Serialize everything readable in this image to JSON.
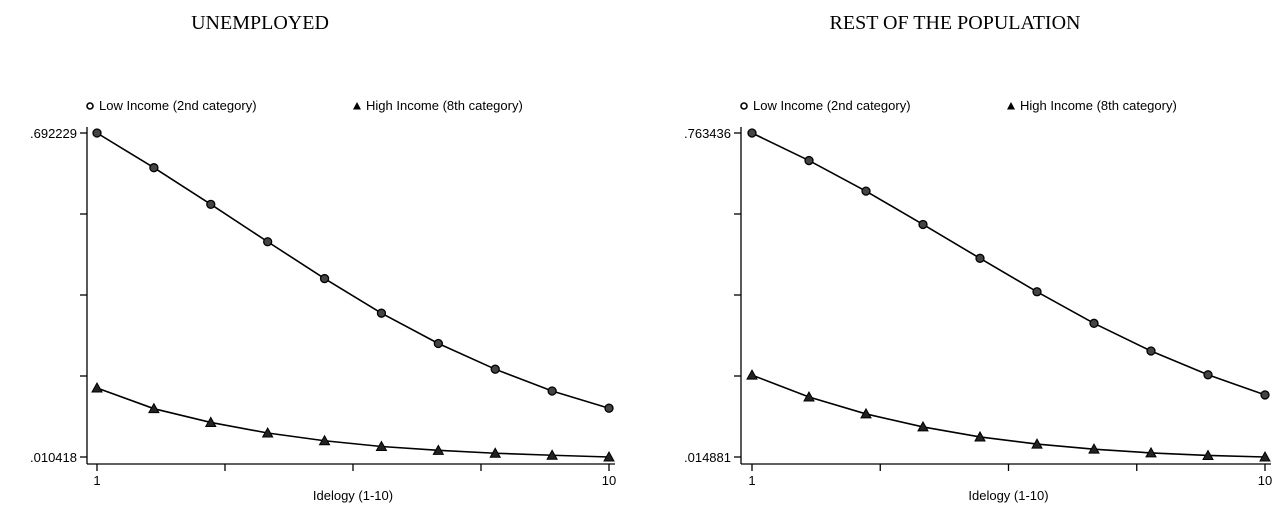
{
  "chart_data": [
    {
      "type": "line",
      "title": "UNEMPLOYED",
      "xlabel": "Idelogy (1-10)",
      "ylabel": "",
      "x": [
        1,
        2,
        3,
        4,
        5,
        6,
        7,
        8,
        9,
        10
      ],
      "xlim": [
        1,
        10
      ],
      "ylim": [
        0.010418,
        0.692229
      ],
      "yticks_labeled": [
        ".010418",
        ".692229"
      ],
      "xticks_labeled": [
        "1",
        "10"
      ],
      "legend": [
        "Low Income (2nd category)",
        "High Income (8th category)"
      ],
      "legend_position": "top",
      "series": [
        {
          "name": "Low Income (2nd category)",
          "marker": "circle",
          "values": [
            0.692229,
            0.6192,
            0.5421,
            0.4634,
            0.3859,
            0.3131,
            0.2493,
            0.1952,
            0.1493,
            0.1131
          ]
        },
        {
          "name": "High Income (8th category)",
          "marker": "triangle",
          "values": [
            0.1556,
            0.1121,
            0.0831,
            0.0609,
            0.0446,
            0.0325,
            0.0244,
            0.0183,
            0.0141,
            0.010418
          ]
        }
      ]
    },
    {
      "type": "line",
      "title": "REST OF THE POPULATION",
      "xlabel": "Idelogy (1-10)",
      "ylabel": "",
      "x": [
        1,
        2,
        3,
        4,
        5,
        6,
        7,
        8,
        9,
        10
      ],
      "xlim": [
        1,
        10
      ],
      "ylim": [
        0.014881,
        0.763436
      ],
      "yticks_labeled": [
        ".014881",
        ".763436"
      ],
      "xticks_labeled": [
        "1",
        "10"
      ],
      "legend": [
        "Low Income (2nd category)",
        "High Income (8th category)"
      ],
      "legend_position": "top",
      "series": [
        {
          "name": "Low Income (2nd category)",
          "marker": "circle",
          "values": [
            0.763436,
            0.6998,
            0.6291,
            0.5521,
            0.4739,
            0.3966,
            0.3237,
            0.2598,
            0.2048,
            0.1583
          ]
        },
        {
          "name": "High Income (8th category)",
          "marker": "triangle",
          "values": [
            0.2041,
            0.1535,
            0.1144,
            0.0844,
            0.0612,
            0.0447,
            0.033,
            0.0243,
            0.0184,
            0.014881
          ]
        }
      ]
    }
  ]
}
